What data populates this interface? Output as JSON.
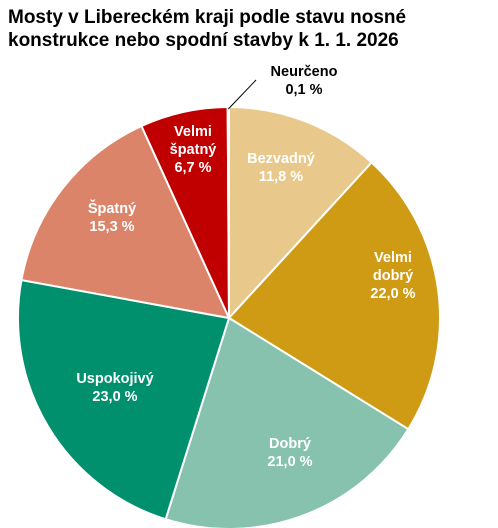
{
  "chart_data": {
    "type": "pie",
    "title_lines": [
      "Mosty v Libereckém kraji podle stavu nosné",
      "konstrukce nebo spodní stavby k 1. 1. 2026"
    ],
    "slices": [
      {
        "label_lines": [
          "Bezvadný"
        ],
        "value": 11.8,
        "value_text": "11,8 %",
        "color": "#e8c98b",
        "text_color": "#ffffff"
      },
      {
        "label_lines": [
          "Velmi",
          "dobrý"
        ],
        "value": 22.0,
        "value_text": "22,0 %",
        "color": "#cf9a14",
        "text_color": "#ffffff"
      },
      {
        "label_lines": [
          "Dobrý"
        ],
        "value": 21.0,
        "value_text": "21,0 %",
        "color": "#86c2ad",
        "text_color": "#ffffff"
      },
      {
        "label_lines": [
          "Uspokojivý"
        ],
        "value": 23.0,
        "value_text": "23,0 %",
        "color": "#00906d",
        "text_color": "#ffffff"
      },
      {
        "label_lines": [
          "Špatný"
        ],
        "value": 15.3,
        "value_text": "15,3 %",
        "color": "#db846a",
        "text_color": "#ffffff"
      },
      {
        "label_lines": [
          "Velmi",
          "špatný"
        ],
        "value": 6.7,
        "value_text": "6,7 %",
        "color": "#c00000",
        "text_color": "#ffffff"
      },
      {
        "label_lines": [
          "Neurčeno"
        ],
        "value": 0.1,
        "value_text": "0,1 %",
        "color": "#7f7f7f",
        "text_color": "#000000"
      }
    ],
    "legend": "none"
  }
}
